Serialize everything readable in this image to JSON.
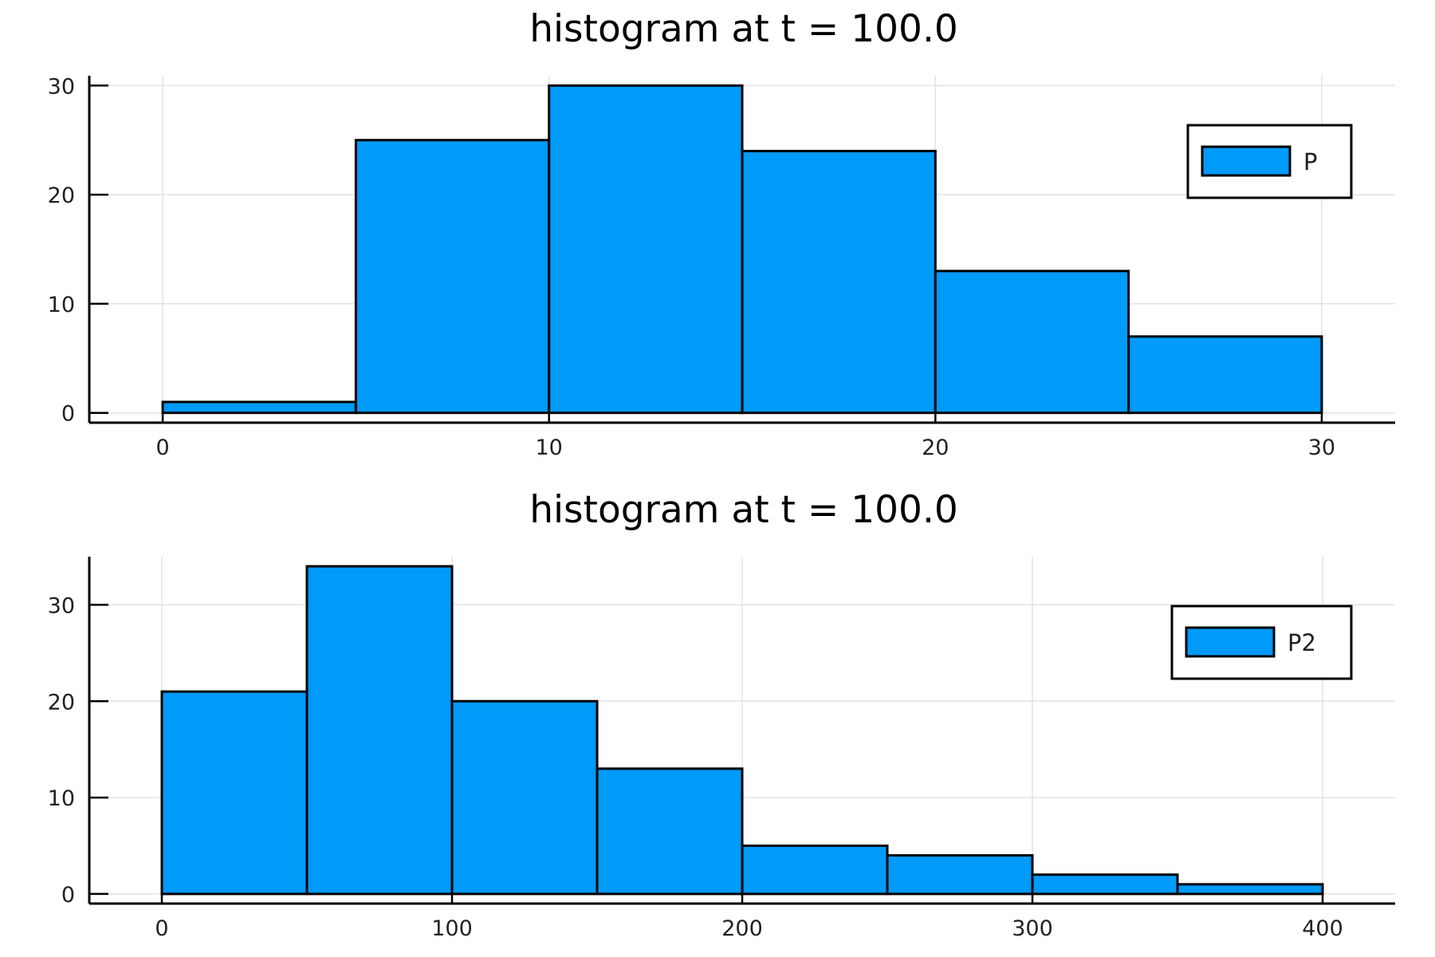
{
  "chart_data": [
    {
      "type": "bar",
      "title": "histogram at t = 100.0",
      "xlabel": "",
      "ylabel": "",
      "bin_edges": [
        0,
        5,
        10,
        15,
        20,
        25,
        30
      ],
      "series": [
        {
          "name": "P",
          "values": [
            1,
            25,
            30,
            24,
            13,
            7
          ],
          "color": "#009af9"
        }
      ],
      "xlim": [
        -1.9,
        31.9
      ],
      "ylim": [
        -0.9,
        30.9
      ],
      "xticks": [
        0,
        10,
        20,
        30
      ],
      "yticks": [
        0,
        10,
        20,
        30
      ],
      "xtick_labels": [
        "0",
        "10",
        "20",
        "30"
      ],
      "ytick_labels": [
        "0",
        "10",
        "20",
        "30"
      ],
      "grid": true,
      "legend_position": "top-right"
    },
    {
      "type": "bar",
      "title": "histogram at t = 100.0",
      "xlabel": "",
      "ylabel": "",
      "bin_edges": [
        0,
        50,
        100,
        150,
        200,
        250,
        300,
        350,
        400
      ],
      "series": [
        {
          "name": "P2",
          "values": [
            21,
            34,
            20,
            13,
            5,
            4,
            2,
            1
          ],
          "color": "#009af9"
        }
      ],
      "xlim": [
        -25,
        425
      ],
      "ylim": [
        -1,
        35
      ],
      "xticks": [
        0,
        100,
        200,
        300,
        400
      ],
      "yticks": [
        0,
        10,
        20,
        30
      ],
      "xtick_labels": [
        "0",
        "100",
        "200",
        "300",
        "400"
      ],
      "ytick_labels": [
        "0",
        "10",
        "20",
        "30"
      ],
      "grid": true,
      "legend_position": "top-right"
    }
  ]
}
